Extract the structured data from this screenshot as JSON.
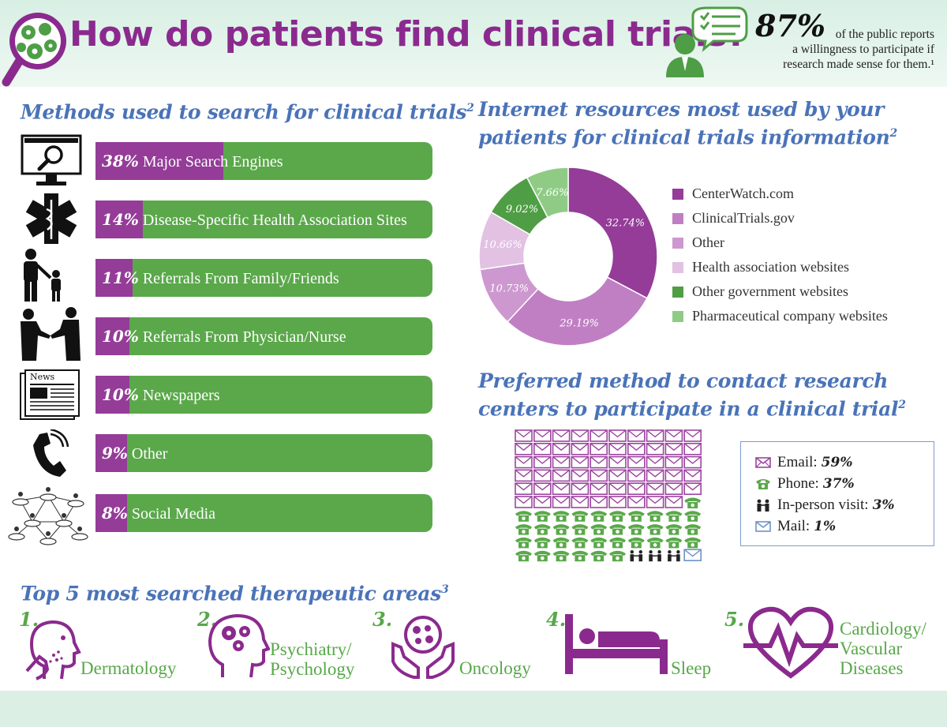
{
  "header": {
    "title": "How do patients find clinical trials?",
    "stat_value": "87%",
    "stat_text_lines": [
      "of the public reports",
      "a willingness to participate if",
      "research made sense for them.¹"
    ]
  },
  "methods": {
    "heading": "Methods used to search for clinical trials",
    "heading_ref": "2",
    "items": [
      {
        "percent": "38%",
        "label": "Major Search Engines",
        "value": 38,
        "icon": "computer-search-icon"
      },
      {
        "percent": "14%",
        "label": "Disease-Specific Health Association Sites",
        "value": 14,
        "icon": "star-of-life-icon"
      },
      {
        "percent": "11%",
        "label": "Referrals From Family/Friends",
        "value": 11,
        "icon": "parent-child-icon"
      },
      {
        "percent": "10%",
        "label": "Referrals From Physician/Nurse",
        "value": 10,
        "icon": "handshake-icon"
      },
      {
        "percent": "10%",
        "label": "Newspapers",
        "value": 10,
        "icon": "newspaper-icon"
      },
      {
        "percent": "9%",
        "label": "Other",
        "value": 9,
        "icon": "phone-icon"
      },
      {
        "percent": "8%",
        "label": "Social Media",
        "value": 8,
        "icon": "social-network-icon"
      }
    ],
    "colors": {
      "fill": "#943c98",
      "track": "#5aa84a"
    }
  },
  "internet": {
    "heading_line1": "Internet resources most used by your",
    "heading_line2": "patients for clinical trials information",
    "heading_ref": "2",
    "newspaper_icon_text": "News"
  },
  "contact": {
    "heading_line1": "Preferred method to contact research",
    "heading_line2": "centers to participate in a clinical trial",
    "heading_ref": "2",
    "items": [
      {
        "label": "Email:",
        "value": "59%",
        "icon": "email-icon"
      },
      {
        "label": "Phone:",
        "value": "37%",
        "icon": "phone-icon"
      },
      {
        "label": "In-person visit:",
        "value": "3%",
        "icon": "people-icon"
      },
      {
        "label": "Mail:",
        "value": "1%",
        "icon": "mail-icon"
      }
    ]
  },
  "areas": {
    "heading": "Top 5 most searched therapeutic areas",
    "heading_ref": "3",
    "items": [
      {
        "num": "1.",
        "label_lines": [
          "Dermatology"
        ],
        "icon": "face-skin-icon"
      },
      {
        "num": "2.",
        "label_lines": [
          "Psychiatry/",
          "Psychology"
        ],
        "icon": "head-gears-icon"
      },
      {
        "num": "3.",
        "label_lines": [
          "Oncology"
        ],
        "icon": "hands-cell-icon"
      },
      {
        "num": "4.",
        "label_lines": [
          "Sleep"
        ],
        "icon": "bed-icon"
      },
      {
        "num": "5.",
        "label_lines": [
          "Cardiology/",
          "Vascular",
          "Diseases"
        ],
        "icon": "heart-pulse-icon"
      }
    ]
  },
  "chart_data": [
    {
      "type": "bar",
      "orientation": "horizontal",
      "categories": [
        "Major Search Engines",
        "Disease-Specific Health Association Sites",
        "Referrals From Family/Friends",
        "Referrals From Physician/Nurse",
        "Newspapers",
        "Other",
        "Social Media"
      ],
      "values": [
        38,
        14,
        11,
        10,
        10,
        9,
        8
      ],
      "xlim": [
        0,
        100
      ]
    },
    {
      "type": "pie",
      "variant": "donut",
      "labels": [
        "CenterWatch.com",
        "ClinicalTrials.gov",
        "Other",
        "Health association websites",
        "Other government websites",
        "Pharmaceutical company websites"
      ],
      "values": [
        32.74,
        29.19,
        10.73,
        10.66,
        9.02,
        7.66
      ],
      "value_labels": [
        "32.74%",
        "29.19%",
        "10.73%",
        "10.66%",
        "9.02%",
        "7.66%"
      ],
      "colors": [
        "#943c98",
        "#c07fc3",
        "#cd98cf",
        "#e2c1e3",
        "#4f9e45",
        "#8fcb85"
      ],
      "legend": "right"
    },
    {
      "type": "waffle",
      "categories": [
        "Email",
        "Phone",
        "In-person visit",
        "Mail"
      ],
      "values": [
        59,
        37,
        3,
        1
      ],
      "grid": [
        10,
        10
      ],
      "colors": [
        "#9c44a0",
        "#5aa84a",
        "#222222",
        "#6f93c7"
      ]
    }
  ]
}
